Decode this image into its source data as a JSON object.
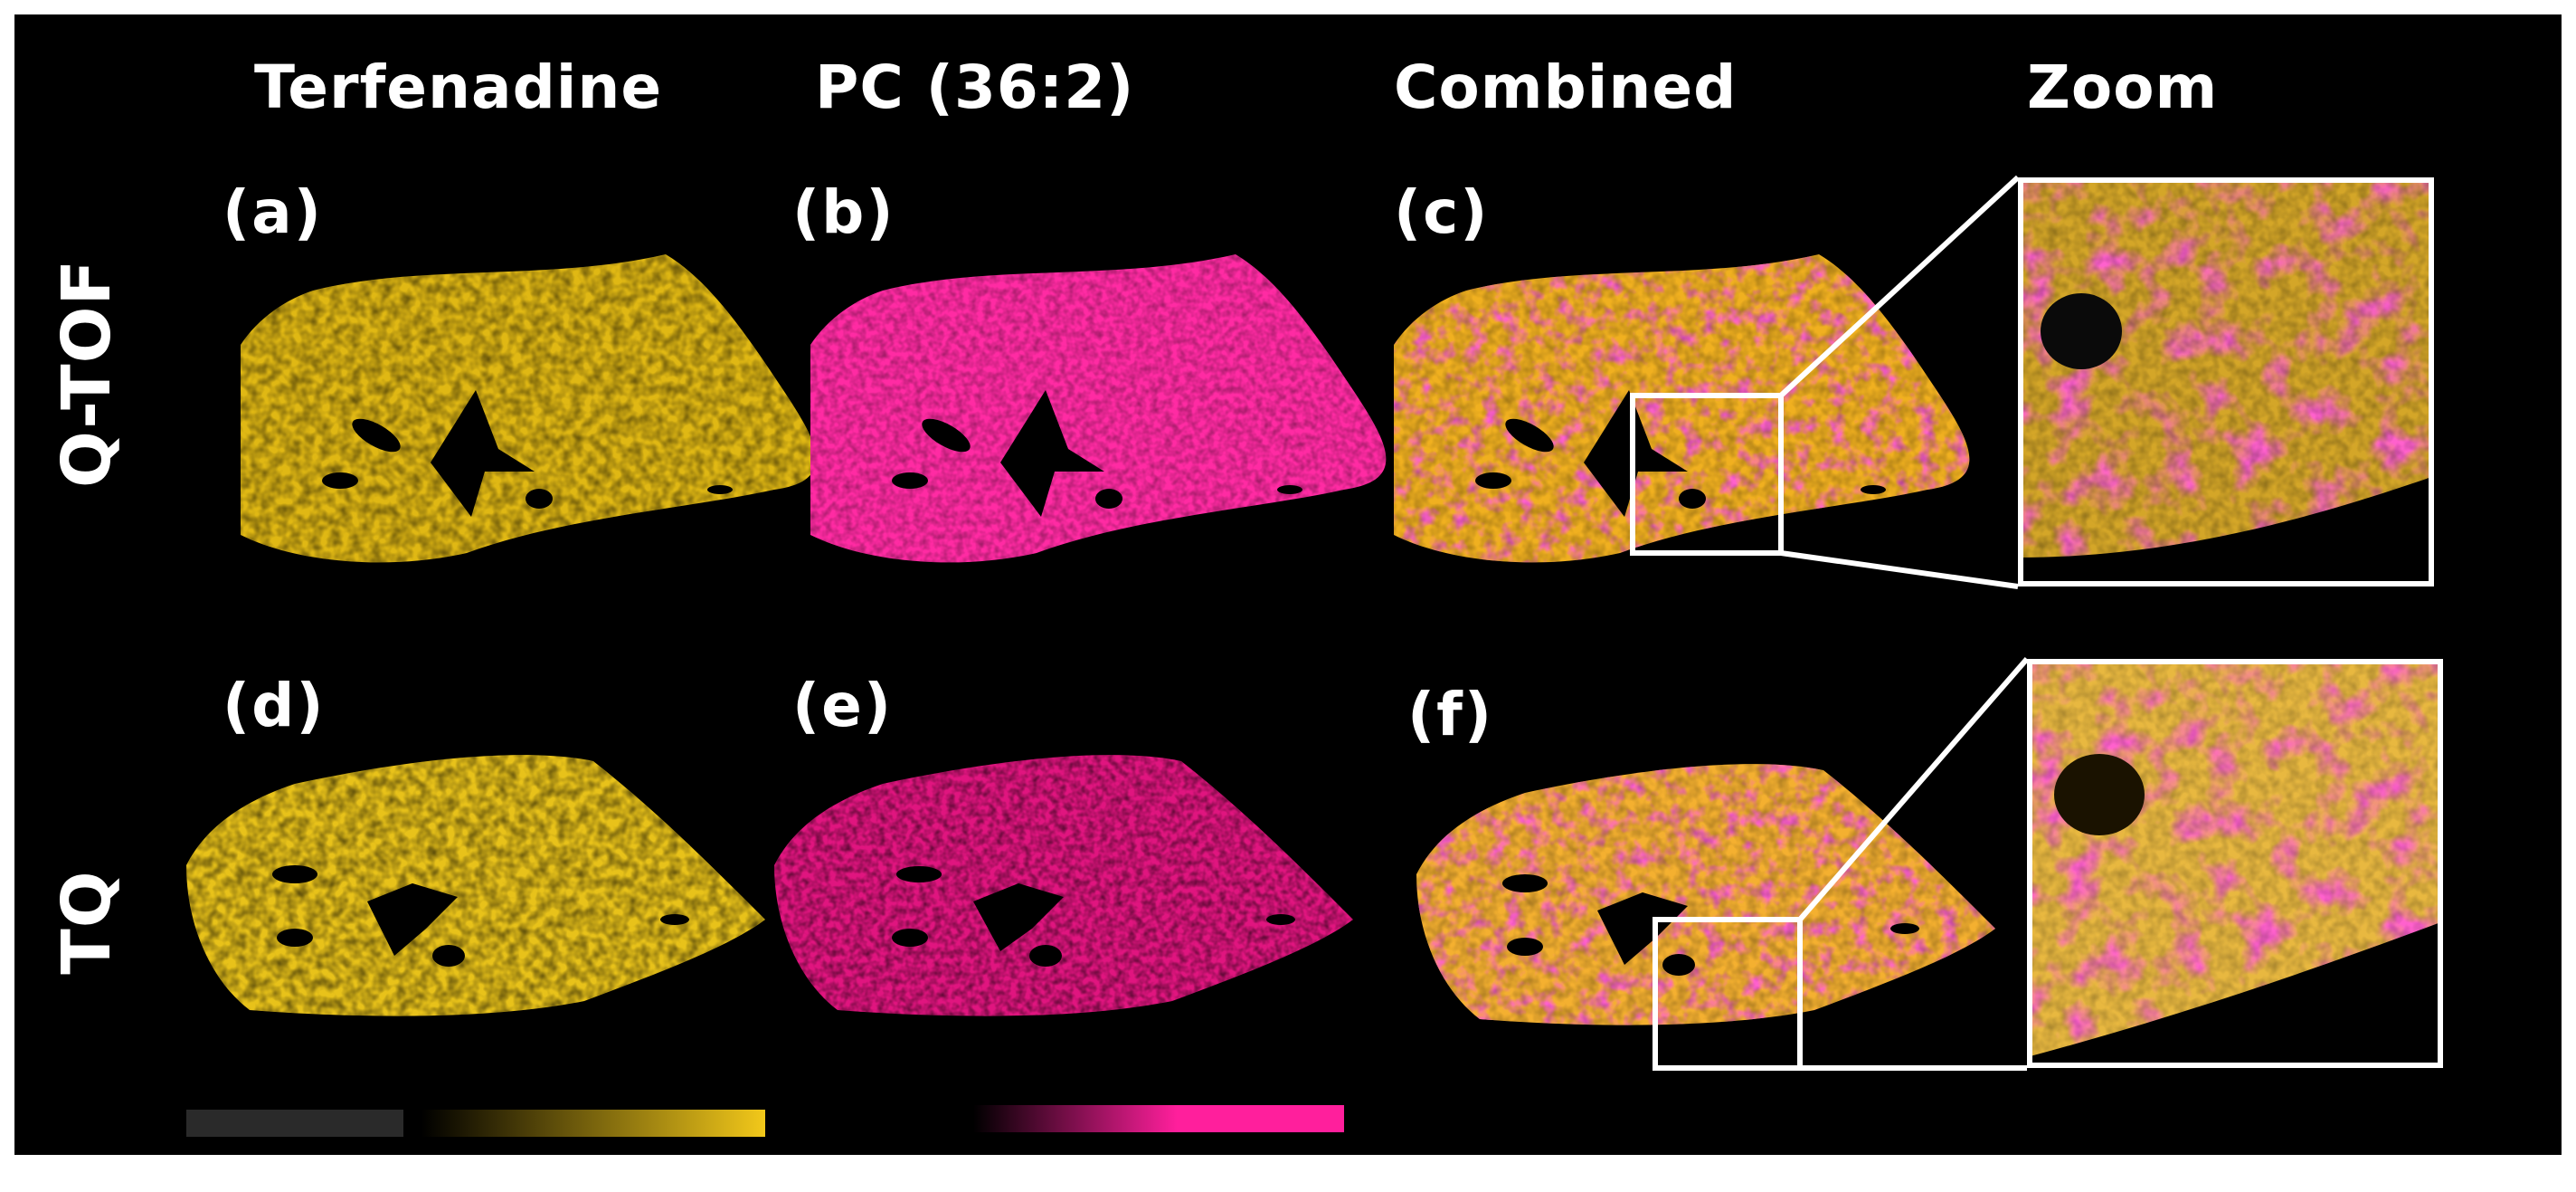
{
  "columns": {
    "terfenadine": "Terfenadine",
    "pc": "PC (36:2)",
    "combined": "Combined",
    "zoom": "Zoom"
  },
  "rows": {
    "qtof": "Q-TOF",
    "tq": "TQ"
  },
  "panels": {
    "a": "(a)",
    "b": "(b)",
    "c": "(c)",
    "d": "(d)",
    "e": "(e)",
    "f": "(f)"
  },
  "colors": {
    "terfenadine": "#f2c81a",
    "pc": "#ff1f9c",
    "combined_mix": "#f0a050",
    "background": "#000000",
    "frame": "#ffffff"
  }
}
